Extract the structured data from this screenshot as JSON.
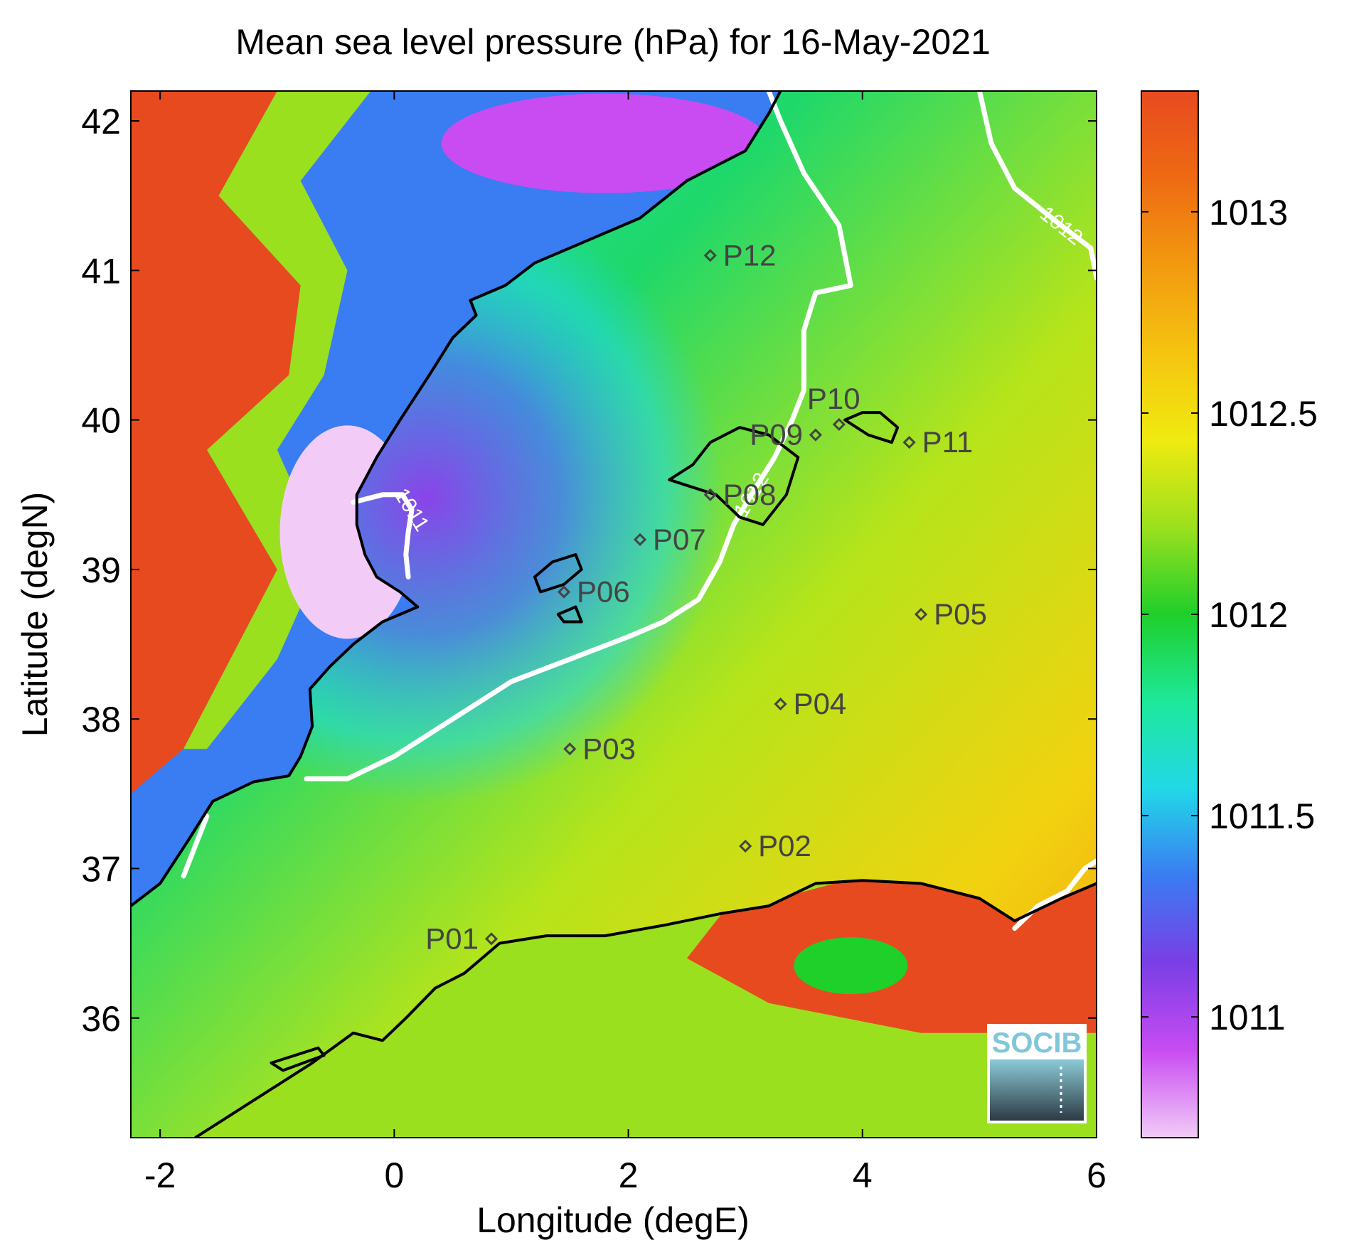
{
  "figure": {
    "title": "Mean sea level pressure (hPa) for 16-May-2021",
    "xlabel": "Longitude (degE)",
    "ylabel": "Latitude (degN)"
  },
  "chart_data": {
    "type": "heatmap",
    "title": "Mean sea level pressure (hPa) for 16-May-2021",
    "xlabel": "Longitude (degE)",
    "ylabel": "Latitude (degN)",
    "xlim": [
      -2.25,
      6.0
    ],
    "ylim": [
      35.2,
      42.2
    ],
    "xticks": [
      -2,
      0,
      2,
      4,
      6
    ],
    "yticks": [
      36,
      37,
      38,
      39,
      40,
      41,
      42
    ],
    "xtick_labels": [
      "-2",
      "0",
      "2",
      "4",
      "6"
    ],
    "ytick_labels": [
      "36",
      "37",
      "38",
      "39",
      "40",
      "41",
      "42"
    ],
    "colorbar": {
      "range": [
        1010.7,
        1013.3
      ],
      "ticks": [
        1011,
        1011.5,
        1012,
        1012.5,
        1013
      ],
      "tick_labels": [
        "1011",
        "1011.5",
        "1012",
        "1012.5",
        "1013"
      ],
      "colormap": [
        "#f2ccf7",
        "#c84cf2",
        "#7a3ee6",
        "#3a7cf2",
        "#22d8e8",
        "#1ee89a",
        "#1fcf2a",
        "#9be01e",
        "#f0ea10",
        "#f5c410",
        "#f29a10",
        "#ee6a12",
        "#e84a20"
      ]
    },
    "contours": [
      {
        "level": 1011,
        "label": "1011",
        "points": [
          [
            -0.35,
            39.45
          ],
          [
            -0.1,
            39.5
          ],
          [
            0.07,
            39.5
          ],
          [
            0.15,
            39.4
          ],
          [
            0.12,
            39.25
          ],
          [
            0.1,
            39.1
          ],
          [
            0.12,
            38.95
          ]
        ]
      },
      {
        "level": 1012,
        "label": "1012",
        "points": [
          [
            -0.75,
            37.6
          ],
          [
            -0.4,
            37.6
          ],
          [
            0.0,
            37.75
          ],
          [
            0.5,
            38.0
          ],
          [
            1.0,
            38.25
          ],
          [
            1.5,
            38.4
          ],
          [
            2.0,
            38.55
          ],
          [
            2.3,
            38.65
          ],
          [
            2.6,
            38.8
          ],
          [
            2.78,
            39.05
          ],
          [
            2.9,
            39.3
          ],
          [
            3.05,
            39.5
          ],
          [
            3.25,
            39.75
          ],
          [
            3.4,
            40.0
          ],
          [
            3.5,
            40.2
          ],
          [
            3.5,
            40.6
          ],
          [
            3.6,
            40.85
          ],
          [
            3.9,
            40.9
          ],
          [
            3.8,
            41.3
          ],
          [
            3.5,
            41.65
          ],
          [
            3.3,
            42.0
          ],
          [
            3.2,
            42.2
          ]
        ]
      },
      {
        "level": 1012,
        "label": "1012",
        "points": [
          [
            5.0,
            42.2
          ],
          [
            5.1,
            41.85
          ],
          [
            5.3,
            41.55
          ],
          [
            5.7,
            41.3
          ],
          [
            5.95,
            41.15
          ],
          [
            6.0,
            40.95
          ]
        ]
      },
      {
        "level": 1012,
        "label": "",
        "points": [
          [
            -1.8,
            36.95
          ],
          [
            -1.7,
            37.15
          ],
          [
            -1.6,
            37.35
          ]
        ]
      },
      {
        "level": 1012,
        "label": "",
        "points": [
          [
            5.3,
            36.6
          ],
          [
            5.5,
            36.75
          ],
          [
            5.75,
            36.85
          ],
          [
            5.9,
            37.0
          ],
          [
            6.0,
            37.05
          ]
        ]
      }
    ],
    "coastline": [
      {
        "name": "iberia",
        "points": [
          [
            -2.25,
            36.75
          ],
          [
            -2.0,
            36.9
          ],
          [
            -1.75,
            37.2
          ],
          [
            -1.55,
            37.45
          ],
          [
            -1.2,
            37.58
          ],
          [
            -0.9,
            37.62
          ],
          [
            -0.8,
            37.75
          ],
          [
            -0.7,
            37.95
          ],
          [
            -0.72,
            38.2
          ],
          [
            -0.55,
            38.35
          ],
          [
            -0.35,
            38.5
          ],
          [
            -0.1,
            38.65
          ],
          [
            0.2,
            38.75
          ],
          [
            0.05,
            38.85
          ],
          [
            -0.15,
            38.95
          ],
          [
            -0.25,
            39.1
          ],
          [
            -0.32,
            39.3
          ],
          [
            -0.32,
            39.5
          ],
          [
            -0.15,
            39.75
          ],
          [
            0.05,
            40.0
          ],
          [
            0.3,
            40.3
          ],
          [
            0.5,
            40.55
          ],
          [
            0.7,
            40.7
          ],
          [
            0.65,
            40.8
          ],
          [
            0.95,
            40.9
          ],
          [
            1.2,
            41.05
          ],
          [
            1.5,
            41.15
          ],
          [
            2.1,
            41.35
          ],
          [
            2.5,
            41.6
          ],
          [
            3.0,
            41.8
          ],
          [
            3.2,
            42.05
          ],
          [
            3.3,
            42.2
          ]
        ]
      },
      {
        "name": "africa",
        "points": [
          [
            -1.7,
            35.2
          ],
          [
            -1.3,
            35.4
          ],
          [
            -1.0,
            35.55
          ],
          [
            -0.7,
            35.7
          ],
          [
            -0.35,
            35.9
          ],
          [
            -0.1,
            35.85
          ],
          [
            0.1,
            36.0
          ],
          [
            0.35,
            36.2
          ],
          [
            0.6,
            36.3
          ],
          [
            0.9,
            36.5
          ],
          [
            1.3,
            36.55
          ],
          [
            1.8,
            36.55
          ],
          [
            2.3,
            36.62
          ],
          [
            2.8,
            36.7
          ],
          [
            3.2,
            36.75
          ],
          [
            3.6,
            36.9
          ],
          [
            4.0,
            36.92
          ],
          [
            4.5,
            36.9
          ],
          [
            5.0,
            36.8
          ],
          [
            5.3,
            36.65
          ],
          [
            5.7,
            36.8
          ],
          [
            6.0,
            36.9
          ]
        ]
      },
      {
        "name": "mallorca",
        "points": [
          [
            2.35,
            39.6
          ],
          [
            2.55,
            39.7
          ],
          [
            2.7,
            39.85
          ],
          [
            2.95,
            39.95
          ],
          [
            3.2,
            39.9
          ],
          [
            3.45,
            39.75
          ],
          [
            3.35,
            39.5
          ],
          [
            3.15,
            39.3
          ],
          [
            2.95,
            39.35
          ],
          [
            2.75,
            39.5
          ],
          [
            2.55,
            39.55
          ],
          [
            2.35,
            39.6
          ]
        ]
      },
      {
        "name": "menorca",
        "points": [
          [
            3.85,
            40.0
          ],
          [
            4.0,
            40.05
          ],
          [
            4.15,
            40.05
          ],
          [
            4.3,
            39.95
          ],
          [
            4.25,
            39.85
          ],
          [
            4.05,
            39.9
          ],
          [
            3.85,
            40.0
          ]
        ]
      },
      {
        "name": "ibiza",
        "points": [
          [
            1.2,
            38.95
          ],
          [
            1.35,
            39.05
          ],
          [
            1.55,
            39.1
          ],
          [
            1.6,
            39.0
          ],
          [
            1.45,
            38.9
          ],
          [
            1.25,
            38.85
          ],
          [
            1.2,
            38.95
          ]
        ]
      },
      {
        "name": "formentera",
        "points": [
          [
            1.4,
            38.7
          ],
          [
            1.55,
            38.75
          ],
          [
            1.6,
            38.65
          ],
          [
            1.45,
            38.65
          ],
          [
            1.4,
            38.7
          ]
        ]
      },
      {
        "name": "alboran-islet",
        "points": [
          [
            -1.05,
            35.7
          ],
          [
            -0.65,
            35.8
          ],
          [
            -0.6,
            35.75
          ],
          [
            -0.95,
            35.65
          ],
          [
            -1.05,
            35.7
          ]
        ]
      }
    ],
    "stations": [
      {
        "name": "P01",
        "lon": 0.83,
        "lat": 36.53,
        "label_side": "left"
      },
      {
        "name": "P02",
        "lon": 3.0,
        "lat": 37.15,
        "label_side": "right"
      },
      {
        "name": "P03",
        "lon": 1.5,
        "lat": 37.8,
        "label_side": "right"
      },
      {
        "name": "P04",
        "lon": 3.3,
        "lat": 38.1,
        "label_side": "right"
      },
      {
        "name": "P05",
        "lon": 4.5,
        "lat": 38.7,
        "label_side": "right"
      },
      {
        "name": "P06",
        "lon": 1.45,
        "lat": 38.85,
        "label_side": "right"
      },
      {
        "name": "P07",
        "lon": 2.1,
        "lat": 39.2,
        "label_side": "right"
      },
      {
        "name": "P08",
        "lon": 2.7,
        "lat": 39.5,
        "label_side": "right"
      },
      {
        "name": "P09",
        "lon": 3.6,
        "lat": 39.9,
        "label_side": "left"
      },
      {
        "name": "P10",
        "lon": 3.8,
        "lat": 39.97,
        "label_side": "above"
      },
      {
        "name": "P11",
        "lon": 4.4,
        "lat": 39.85,
        "label_side": "right"
      },
      {
        "name": "P12",
        "lon": 2.7,
        "lat": 41.1,
        "label_side": "right"
      }
    ]
  },
  "logo": {
    "text": "SOCIB",
    "color": "#7fc7d9"
  }
}
